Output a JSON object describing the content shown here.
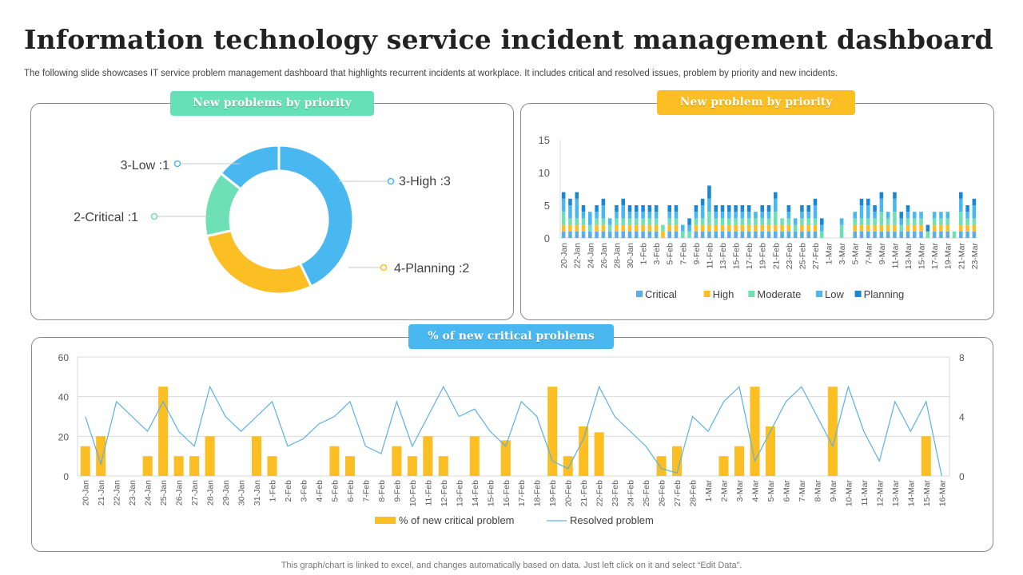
{
  "page": {
    "title": "Information technology service incident management dashboard",
    "subtitle": "The following slide showcases IT service problem management dashboard that highlights recurrent incidents at workplace. It includes critical and resolved issues, problem by priority and new incidents.",
    "footer": "This graph/chart is linked to excel,  and changes automatically based on data. Just left click on it and select “Edit Data”."
  },
  "panels": {
    "donut_title": "New problems by priority",
    "stacked_title": "New problem by priority",
    "critical_title": "% of new critical problems"
  },
  "colors": {
    "critical": "#5ab0e6",
    "high": "#fbbf24",
    "moderate": "#6ee0b5",
    "low": "#4ab8f0",
    "planning": "#1a86d6",
    "line": "#5ab0e6",
    "grid": "#d9d9d9",
    "axis_text": "#595959"
  },
  "chart_data": [
    {
      "id": "donut",
      "type": "pie",
      "title": "New problems by priority",
      "slices": [
        {
          "name": "3-High",
          "value": 3,
          "label": "3-High :3",
          "color": "#4ab8f0"
        },
        {
          "name": "4-Planning",
          "value": 2,
          "label": "4-Planning :2",
          "color": "#fbbf24"
        },
        {
          "name": "2-Critical",
          "value": 1,
          "label": "2-Critical :1",
          "color": "#6ee0b5"
        },
        {
          "name": "3-Low",
          "value": 1,
          "label": "3-Low :1",
          "color": "#4ab8f0"
        }
      ]
    },
    {
      "id": "stacked",
      "type": "bar",
      "stacked": true,
      "title": "New problem by priority",
      "ylim": [
        0,
        15
      ],
      "yticks": [
        0,
        5,
        10,
        15
      ],
      "categories": [
        "20-Jan",
        "21-Jan",
        "22-Jan",
        "23-Jan",
        "24-Jan",
        "25-Jan",
        "26-Jan",
        "27-Jan",
        "28-Jan",
        "29-Jan",
        "30-Jan",
        "31-Jan",
        "1-Feb",
        "2-Feb",
        "3-Feb",
        "4-Feb",
        "5-Feb",
        "6-Feb",
        "7-Feb",
        "8-Feb",
        "9-Feb",
        "10-Feb",
        "11-Feb",
        "12-Feb",
        "13-Feb",
        "14-Feb",
        "15-Feb",
        "16-Feb",
        "17-Feb",
        "18-Feb",
        "19-Feb",
        "20-Feb",
        "21-Feb",
        "22-Feb",
        "23-Feb",
        "24-Feb",
        "25-Feb",
        "26-Feb",
        "27-Feb",
        "28-Feb",
        "1-Mar",
        "2-Mar",
        "3-Mar",
        "4-Mar",
        "5-Mar",
        "6-Mar",
        "7-Mar",
        "8-Mar",
        "9-Mar",
        "10-Mar",
        "11-Mar",
        "12-Mar",
        "13-Mar",
        "14-Mar",
        "15-Mar",
        "16-Mar",
        "17-Mar",
        "18-Mar",
        "19-Mar",
        "20-Mar",
        "21-Mar",
        "22-Mar",
        "23-Mar"
      ],
      "xtick_labels": [
        "20-Jan",
        "22-Jan",
        "24-Jan",
        "26-Jan",
        "28-Jan",
        "30-Jan",
        "1-Feb",
        "3-Feb",
        "5-Feb",
        "7-Feb",
        "9-Feb",
        "11-Feb",
        "13-Feb",
        "15-Feb",
        "17-Feb",
        "19-Feb",
        "21-Feb",
        "23-Feb",
        "25-Feb",
        "27-Feb",
        "1-Mar",
        "3-Mar",
        "5-Mar",
        "7-Mar",
        "9-Mar",
        "11-Mar",
        "13-Mar",
        "15-Mar",
        "17-Mar",
        "19-Mar",
        "21-Mar",
        "23-Mar"
      ],
      "series": [
        {
          "name": "Critical",
          "color": "#5ab0e6",
          "values": [
            1,
            1,
            1,
            1,
            1,
            1,
            1,
            1,
            1,
            1,
            1,
            1,
            1,
            1,
            1,
            0,
            1,
            1,
            0,
            0,
            1,
            1,
            1,
            1,
            1,
            1,
            1,
            1,
            1,
            1,
            1,
            1,
            1,
            1,
            1,
            1,
            1,
            1,
            1,
            0,
            0,
            0,
            0,
            0,
            1,
            1,
            1,
            1,
            1,
            1,
            1,
            1,
            1,
            1,
            1,
            0,
            1,
            1,
            1,
            0,
            1,
            1,
            1
          ]
        },
        {
          "name": "High",
          "color": "#fbbf24",
          "values": [
            1,
            1,
            1,
            1,
            0,
            1,
            1,
            0,
            1,
            1,
            1,
            1,
            1,
            1,
            1,
            1,
            1,
            1,
            0,
            0,
            1,
            1,
            1,
            1,
            1,
            1,
            1,
            1,
            1,
            1,
            1,
            1,
            1,
            1,
            1,
            0,
            1,
            1,
            1,
            0,
            0,
            0,
            0,
            0,
            1,
            1,
            1,
            1,
            1,
            1,
            1,
            0,
            1,
            1,
            1,
            0,
            1,
            1,
            1,
            0,
            1,
            1,
            1
          ]
        },
        {
          "name": "Moderate",
          "color": "#6ee0b5",
          "values": [
            2,
            1,
            1,
            1,
            1,
            1,
            1,
            1,
            1,
            1,
            1,
            1,
            1,
            1,
            1,
            1,
            1,
            1,
            1,
            1,
            1,
            1,
            2,
            1,
            1,
            1,
            1,
            1,
            1,
            1,
            1,
            1,
            2,
            1,
            1,
            1,
            1,
            1,
            1,
            1,
            0,
            0,
            2,
            0,
            1,
            1,
            1,
            1,
            2,
            1,
            2,
            1,
            1,
            1,
            1,
            1,
            1,
            1,
            1,
            1,
            2,
            1,
            1
          ]
        },
        {
          "name": "Low",
          "color": "#4ab8f0",
          "values": [
            2,
            2,
            3,
            1,
            2,
            1,
            2,
            1,
            1,
            2,
            1,
            1,
            1,
            1,
            1,
            0,
            1,
            1,
            1,
            1,
            1,
            2,
            2,
            1,
            1,
            1,
            1,
            1,
            1,
            1,
            1,
            1,
            2,
            0,
            1,
            1,
            1,
            1,
            2,
            1,
            0,
            0,
            1,
            0,
            1,
            2,
            2,
            1,
            2,
            1,
            2,
            1,
            1,
            1,
            1,
            0,
            1,
            1,
            1,
            0,
            2,
            1,
            2
          ]
        },
        {
          "name": "Planning",
          "color": "#1a86d6",
          "values": [
            1,
            1,
            1,
            1,
            0,
            1,
            1,
            0,
            1,
            1,
            1,
            1,
            1,
            1,
            1,
            0,
            1,
            1,
            0,
            1,
            1,
            1,
            2,
            1,
            1,
            1,
            1,
            1,
            1,
            0,
            1,
            1,
            1,
            0,
            1,
            0,
            1,
            1,
            1,
            1,
            0,
            0,
            0,
            0,
            0,
            1,
            1,
            1,
            1,
            0,
            1,
            1,
            1,
            0,
            0,
            1,
            0,
            0,
            0,
            0,
            1,
            1,
            1
          ]
        }
      ],
      "legend": [
        "Critical",
        "High",
        "Moderate",
        "Low",
        "Planning"
      ]
    },
    {
      "id": "critical",
      "type": "bar",
      "title": "% of new critical problems",
      "categories": [
        "20-Jan",
        "21-Jan",
        "22-Jan",
        "23-Jan",
        "24-Jan",
        "25-Jan",
        "26-Jan",
        "27-Jan",
        "28-Jan",
        "29-Jan",
        "30-Jan",
        "31-Jan",
        "1-Feb",
        "2-Feb",
        "3-Feb",
        "4-Feb",
        "5-Feb",
        "6-Feb",
        "7-Feb",
        "8-Feb",
        "9-Feb",
        "10-Feb",
        "11-Feb",
        "12-Feb",
        "13-Feb",
        "14-Feb",
        "15-Feb",
        "16-Feb",
        "17-Feb",
        "18-Feb",
        "19-Feb",
        "20-Feb",
        "21-Feb",
        "22-Feb",
        "23-Feb",
        "24-Feb",
        "25-Feb",
        "26-Feb",
        "27-Feb",
        "28-Feb",
        "1-Mar",
        "2-Mar",
        "3-Mar",
        "4-Mar",
        "5-Mar",
        "6-Mar",
        "7-Mar",
        "8-Mar",
        "9-Mar",
        "10-Mar",
        "11-Mar",
        "12-Mar",
        "13-Mar",
        "14-Mar",
        "15-Mar",
        "16-Mar"
      ],
      "y_left": {
        "lim": [
          0,
          60
        ],
        "ticks": [
          0,
          20,
          40,
          60
        ]
      },
      "y_right": {
        "lim": [
          0,
          8
        ],
        "ticks": [
          0,
          4,
          8
        ]
      },
      "series": [
        {
          "name": "% of new critical problem",
          "type": "bar",
          "axis": "left",
          "color": "#fbbf24",
          "values": [
            15,
            20,
            0,
            0,
            10,
            45,
            10,
            10,
            20,
            0,
            0,
            20,
            10,
            0,
            0,
            0,
            15,
            10,
            0,
            0,
            15,
            10,
            20,
            10,
            0,
            20,
            0,
            18,
            0,
            0,
            45,
            10,
            25,
            22,
            0,
            0,
            0,
            10,
            15,
            0,
            0,
            10,
            15,
            45,
            25,
            0,
            0,
            0,
            45,
            0,
            0,
            0,
            0,
            0,
            20,
            0
          ]
        },
        {
          "name": "Resolved problem",
          "type": "line",
          "axis": "right",
          "color": "#5ab0e6",
          "values": [
            4,
            0.8,
            5,
            4,
            3,
            5,
            3,
            2,
            6,
            4,
            3,
            4,
            5,
            2,
            2.5,
            3.5,
            4,
            5,
            2,
            1.5,
            5,
            2,
            4,
            6,
            4,
            4.5,
            3,
            2,
            5,
            4,
            1,
            0.5,
            2.5,
            6,
            4,
            3,
            2,
            0.5,
            0.2,
            4,
            3,
            5,
            6,
            1,
            3,
            5,
            6,
            4,
            2,
            6,
            3,
            1,
            5,
            3,
            5,
            0
          ]
        }
      ],
      "legend": [
        "% of new critical problem",
        "Resolved problem"
      ]
    }
  ]
}
